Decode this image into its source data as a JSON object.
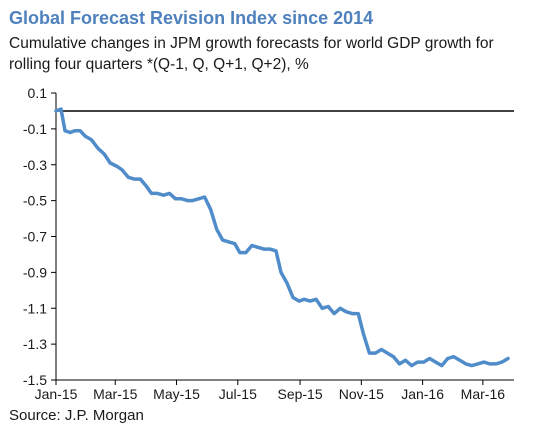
{
  "title": "Global Forecast Revision Index since 2014",
  "subtitle": "Cumulative changes in JPM growth forecasts for world GDP growth for rolling four quarters *(Q-1, Q, Q+1, Q+2), %",
  "source": "Source: J.P. Morgan",
  "colors": {
    "title": "#4f81bd",
    "line": "#4f8cc9",
    "axis": "#000000",
    "text": "#1a1a1a"
  },
  "chart_data": {
    "type": "line",
    "title": "Global Forecast Revision Index since 2014",
    "ylim": [
      -1.5,
      0.1
    ],
    "yticks": [
      0.1,
      -0.1,
      -0.3,
      -0.5,
      -0.7,
      -0.9,
      -1.1,
      -1.3,
      -1.5
    ],
    "ytick_labels": [
      "0.1",
      "-0.1",
      "-0.3",
      "-0.5",
      "-0.7",
      "-0.9",
      "-1.1",
      "-1.3",
      "-1.5"
    ],
    "xtick_labels": [
      "Jan-15",
      "Mar-15",
      "May-15",
      "Jul-15",
      "Sep-15",
      "Nov-15",
      "Jan-16",
      "Mar-16"
    ],
    "xtick_dates": [
      "2015-01-01",
      "2015-03-01",
      "2015-05-01",
      "2015-07-01",
      "2015-09-01",
      "2015-11-01",
      "2016-01-01",
      "2016-03-01"
    ],
    "x_range": [
      "2015-01-01",
      "2016-04-01"
    ],
    "zero_line": 0,
    "grid": false,
    "legend": "none",
    "series": [
      {
        "x": [
          "2015-01-01",
          "2015-01-06",
          "2015-01-10",
          "2015-01-15",
          "2015-01-20",
          "2015-01-25",
          "2015-01-30",
          "2015-02-05",
          "2015-02-12",
          "2015-02-18",
          "2015-02-24",
          "2015-03-03",
          "2015-03-08",
          "2015-03-14",
          "2015-03-20",
          "2015-03-26",
          "2015-04-01",
          "2015-04-06",
          "2015-04-12",
          "2015-04-18",
          "2015-04-24",
          "2015-04-30",
          "2015-05-06",
          "2015-05-12",
          "2015-05-17",
          "2015-05-23",
          "2015-05-29",
          "2015-06-04",
          "2015-06-10",
          "2015-06-16",
          "2015-06-22",
          "2015-06-28",
          "2015-07-03",
          "2015-07-09",
          "2015-07-15",
          "2015-07-21",
          "2015-07-27",
          "2015-08-02",
          "2015-08-08",
          "2015-08-13",
          "2015-08-19",
          "2015-08-25",
          "2015-08-31",
          "2015-09-05",
          "2015-09-11",
          "2015-09-17",
          "2015-09-23",
          "2015-09-29",
          "2015-10-05",
          "2015-10-11",
          "2015-10-17",
          "2015-10-23",
          "2015-10-29",
          "2015-11-03",
          "2015-11-09",
          "2015-11-15",
          "2015-11-21",
          "2015-11-27",
          "2015-12-03",
          "2015-12-09",
          "2015-12-15",
          "2015-12-21",
          "2015-12-27",
          "2016-01-02",
          "2016-01-08",
          "2016-01-14",
          "2016-01-20",
          "2016-01-26",
          "2016-02-01",
          "2016-02-07",
          "2016-02-13",
          "2016-02-19",
          "2016-02-25",
          "2016-03-02",
          "2016-03-08",
          "2016-03-14",
          "2016-03-20",
          "2016-03-26"
        ],
        "y": [
          0.0,
          0.01,
          -0.11,
          -0.12,
          -0.11,
          -0.11,
          -0.14,
          -0.16,
          -0.21,
          -0.24,
          -0.29,
          -0.31,
          -0.33,
          -0.37,
          -0.38,
          -0.38,
          -0.42,
          -0.46,
          -0.46,
          -0.47,
          -0.46,
          -0.49,
          -0.49,
          -0.5,
          -0.5,
          -0.49,
          -0.48,
          -0.55,
          -0.66,
          -0.72,
          -0.73,
          -0.74,
          -0.79,
          -0.79,
          -0.75,
          -0.76,
          -0.77,
          -0.77,
          -0.78,
          -0.9,
          -0.96,
          -1.04,
          -1.06,
          -1.05,
          -1.06,
          -1.05,
          -1.1,
          -1.09,
          -1.13,
          -1.1,
          -1.12,
          -1.13,
          -1.13,
          -1.24,
          -1.35,
          -1.35,
          -1.33,
          -1.35,
          -1.37,
          -1.41,
          -1.39,
          -1.42,
          -1.4,
          -1.4,
          -1.38,
          -1.4,
          -1.42,
          -1.38,
          -1.37,
          -1.39,
          -1.41,
          -1.42,
          -1.41,
          -1.4,
          -1.41,
          -1.41,
          -1.4,
          -1.38
        ]
      }
    ]
  }
}
